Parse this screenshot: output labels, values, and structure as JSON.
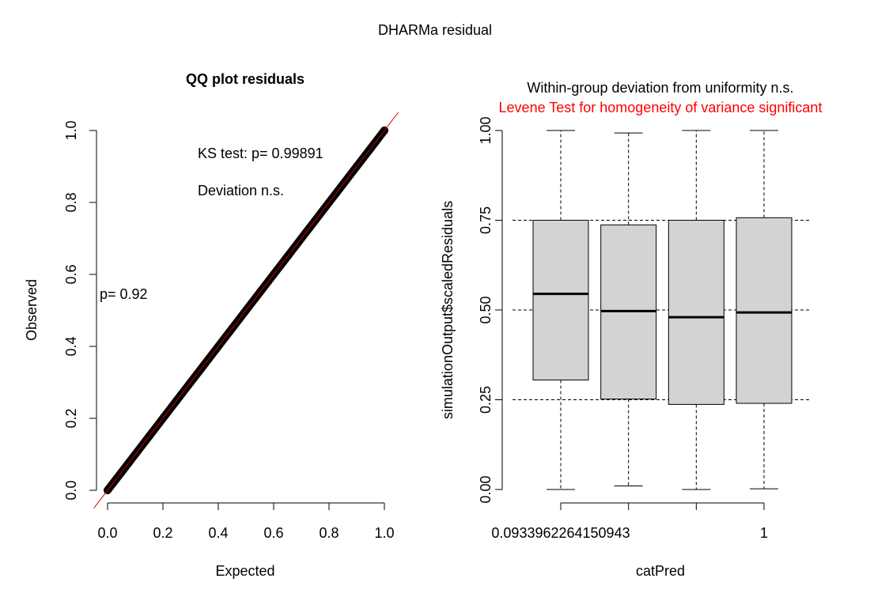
{
  "figure": {
    "title": "DHARMa residual"
  },
  "chart_data": [
    {
      "type": "scatter",
      "title": "QQ plot residuals",
      "xlabel": "Expected",
      "ylabel": "Observed",
      "xlim": [
        0,
        1
      ],
      "ylim": [
        0,
        1
      ],
      "xticks": [
        "0.0",
        "0.2",
        "0.4",
        "0.6",
        "0.8",
        "1.0"
      ],
      "yticks": [
        "0.0",
        "0.2",
        "0.4",
        "0.6",
        "0.8",
        "1.0"
      ],
      "reference_line": {
        "from": [
          -0.05,
          -0.05
        ],
        "to": [
          1.05,
          1.05
        ],
        "color": "#cc0000"
      },
      "series": [
        {
          "x": [
            0.0,
            0.05,
            0.1,
            0.15,
            0.2,
            0.25,
            0.3,
            0.35,
            0.4,
            0.45,
            0.5,
            0.55,
            0.6,
            0.65,
            0.7,
            0.75,
            0.8,
            0.85,
            0.9,
            0.95,
            1.0
          ],
          "y": [
            0.0,
            0.05,
            0.1,
            0.15,
            0.2,
            0.25,
            0.3,
            0.35,
            0.4,
            0.45,
            0.5,
            0.55,
            0.6,
            0.65,
            0.7,
            0.75,
            0.8,
            0.85,
            0.9,
            0.95,
            1.0
          ]
        }
      ],
      "annotations": {
        "ks_test": "KS test: p= 0.99891",
        "deviation": "Deviation  n.s.",
        "dispersion_p": "p= 0.92"
      }
    },
    {
      "type": "box",
      "title": "Within-group deviation from uniformity n.s.",
      "subtitle": "Levene Test for homogeneity of variance significant",
      "subtitle_color": "#ff0000",
      "xlabel": "catPred",
      "ylabel": "simulationOutput$scaledResiduals",
      "ylim": [
        0,
        1
      ],
      "yticks": [
        "0.00",
        "0.25",
        "0.50",
        "0.75",
        "1.00"
      ],
      "ref_lines": [
        0.25,
        0.5,
        0.75
      ],
      "categories": [
        "0.0933962264150943",
        "",
        "",
        "1"
      ],
      "boxes": [
        {
          "min": 0.0,
          "q1": 0.305,
          "median": 0.545,
          "q3": 0.75,
          "max": 1.0
        },
        {
          "min": 0.01,
          "q1": 0.252,
          "median": 0.497,
          "q3": 0.737,
          "max": 0.993
        },
        {
          "min": 0.0,
          "q1": 0.237,
          "median": 0.48,
          "q3": 0.75,
          "max": 1.0
        },
        {
          "min": 0.002,
          "q1": 0.24,
          "median": 0.493,
          "q3": 0.757,
          "max": 1.0
        }
      ],
      "box_fill": "#d3d3d3"
    }
  ]
}
